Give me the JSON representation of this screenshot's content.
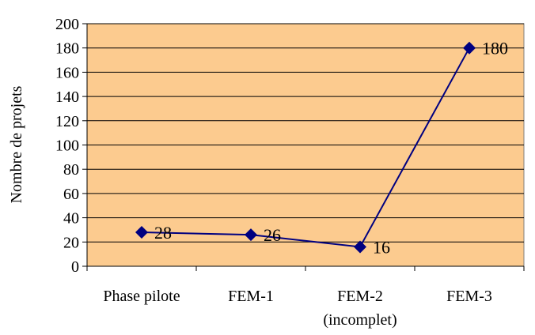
{
  "chart_data": {
    "type": "line",
    "title": "",
    "xlabel": "",
    "ylabel": "Nombre de projets",
    "categories": [
      "Phase pilote",
      "FEM-1",
      "FEM-2 (incomplet)",
      "FEM-3"
    ],
    "category_lines": [
      [
        "Phase pilote"
      ],
      [
        "FEM-1"
      ],
      [
        "FEM-2",
        "(incomplet)"
      ],
      [
        "FEM-3"
      ]
    ],
    "series": [
      {
        "values": [
          28,
          26,
          16,
          180
        ]
      }
    ],
    "ylim": [
      0,
      200
    ],
    "yticks": [
      "0",
      "20",
      "40",
      "60",
      "80",
      "100",
      "120",
      "140",
      "160",
      "180",
      "200"
    ],
    "data_labels": [
      "28",
      "26",
      "16",
      "180"
    ],
    "grid": true,
    "legend": "none",
    "colors": {
      "plot_background": "#FCCB8F",
      "line": "#000080",
      "marker": "#000080",
      "gridline": "#000000"
    }
  }
}
